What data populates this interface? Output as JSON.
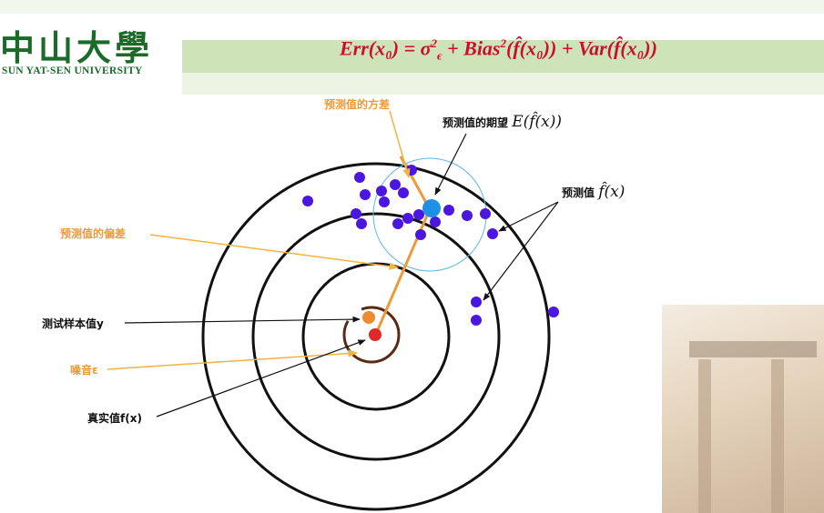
{
  "header": {
    "logo_cn": "中山大學",
    "logo_en": "SUN YAT-SEN UNIVERSITY"
  },
  "formula": {
    "lhs": "Err(x₀) = σ",
    "sigma_sup": "2",
    "sigma_sub": "ϵ",
    "bias_part": " + Bias",
    "bias_sup": "2",
    "bias_arg": "(f̂(x₀))",
    "var_part": " + Var(f̂(x₀))"
  },
  "labels": {
    "pred_variance": "预测值的方差",
    "pred_expectation": "预测值的期望",
    "pred_expectation_math": "E(f̂(x))",
    "pred_value": "预测值",
    "pred_value_math": "f̂(x)",
    "pred_bias": "预测值的偏差",
    "test_sample": "测试样本值y",
    "noise": "噪音ε",
    "true_value": "真实值f(x)"
  },
  "colors": {
    "brand_green": "#1a6b2a",
    "formula_red": "#c8102e",
    "orange": "#ee9a3a",
    "point_purple": "#4b16e0",
    "expectation_blue": "#1e90e6",
    "true_red": "#e02828"
  }
}
